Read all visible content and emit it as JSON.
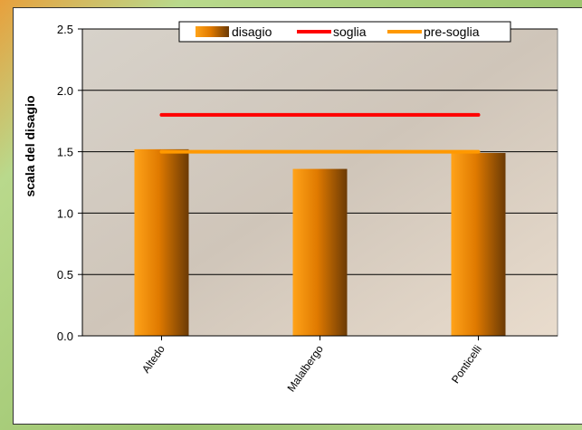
{
  "chart_data": {
    "type": "bar",
    "title": "",
    "xlabel": "",
    "ylabel": "scala del disagio",
    "ylim": [
      0,
      2.5
    ],
    "yticks": [
      "0.0",
      "0.5",
      "1.0",
      "1.5",
      "2.0",
      "2.5"
    ],
    "ytick_values": [
      0,
      0.5,
      1.0,
      1.5,
      2.0,
      2.5
    ],
    "grid": true,
    "legend_position": "top-right",
    "categories": [
      "Altedo",
      "Malalbergo",
      "Ponticelli"
    ],
    "series": [
      {
        "name": "disagio",
        "type": "bar",
        "values": [
          1.52,
          1.36,
          1.49
        ],
        "color": "#f0900a"
      },
      {
        "name": "soglia",
        "type": "line",
        "values": [
          1.8,
          1.8,
          1.8
        ],
        "color": "#ff0000"
      },
      {
        "name": "pre-soglia",
        "type": "line",
        "values": [
          1.5,
          1.5,
          1.5
        ],
        "color": "#ff9900"
      }
    ]
  }
}
